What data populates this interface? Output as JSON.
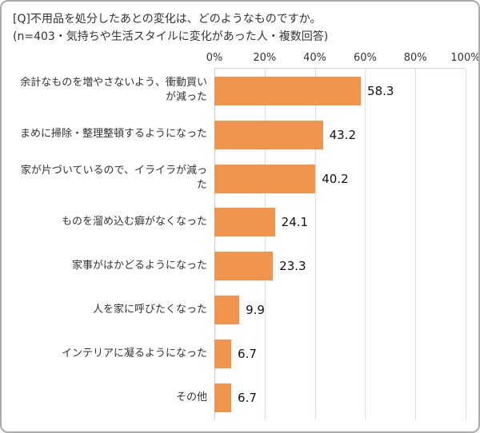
{
  "header": {
    "title": "[Q]不用品を処分したあとの変化は、どのようなものですか。",
    "subtitle": "(n=403・気持ちや生活スタイルに変化があった人・複数回答)"
  },
  "chart_data": {
    "type": "bar",
    "orientation": "horizontal",
    "title": "[Q]不用品を処分したあとの変化は、どのようなものですか。",
    "subtitle": "(n=403・気持ちや生活スタイルに変化があった人・複数回答)",
    "categories": [
      "余計なものを増やさないよう、衝動買いが減った",
      "まめに掃除・整理整頓するようになった",
      "家が片づいているので、イライラが減った",
      "ものを溜め込む癖がなくなった",
      "家事がはかどるようになった",
      "人を家に呼びたくなった",
      "インテリアに凝るようになった",
      "その他"
    ],
    "values": [
      58.3,
      43.2,
      40.2,
      24.1,
      23.3,
      9.9,
      6.7,
      6.7
    ],
    "x_ticks": [
      "0%",
      "20%",
      "40%",
      "60%",
      "80%",
      "100%"
    ],
    "xlim": [
      0,
      100
    ],
    "grid": true,
    "legend": "none",
    "bar_color": "#f0944e",
    "gridline_color": "#e8dadc"
  }
}
